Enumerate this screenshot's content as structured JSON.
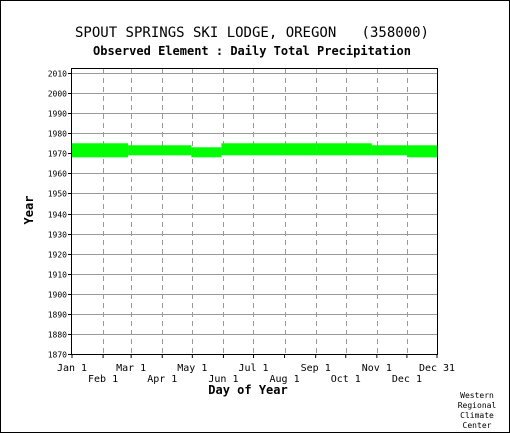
{
  "chart_data": {
    "type": "heatmap",
    "title": "SPOUT SPRINGS SKI LODGE, OREGON   (358000)",
    "subtitle": "Observed Element : Daily Total Precipitation",
    "xlabel": "Day of Year",
    "ylabel": "Year",
    "x_ticks_upper": [
      "Jan 1",
      "Mar 1",
      "May 1",
      "Jul 1",
      "Sep 1",
      "Nov 1",
      "Dec 31"
    ],
    "x_ticks_lower": [
      "Feb 1",
      "Apr 1",
      "Jun 1",
      "Aug 1",
      "Oct 1",
      "Dec 1"
    ],
    "y_ticks": [
      2010,
      2000,
      1990,
      1980,
      1970,
      1960,
      1950,
      1940,
      1930,
      1920,
      1910,
      1900,
      1890,
      1880,
      1870
    ],
    "ylim": [
      1870,
      2012
    ],
    "xlim_day_of_year": [
      1,
      365
    ],
    "grid": true,
    "data_color": "#00ff00",
    "record_periods": [
      {
        "start_day": 1,
        "end_day": 57,
        "from_year": 1968,
        "to_year": 1975
      },
      {
        "start_day": 57,
        "end_day": 120,
        "from_year": 1969,
        "to_year": 1974
      },
      {
        "start_day": 120,
        "end_day": 150,
        "from_year": 1968,
        "to_year": 1973
      },
      {
        "start_day": 150,
        "end_day": 178,
        "from_year": 1969,
        "to_year": 1975
      },
      {
        "start_day": 178,
        "end_day": 212,
        "from_year": 1969,
        "to_year": 1975
      },
      {
        "start_day": 212,
        "end_day": 245,
        "from_year": 1969,
        "to_year": 1975
      },
      {
        "start_day": 245,
        "end_day": 300,
        "from_year": 1969,
        "to_year": 1975
      },
      {
        "start_day": 300,
        "end_day": 335,
        "from_year": 1969,
        "to_year": 1974
      },
      {
        "start_day": 335,
        "end_day": 365,
        "from_year": 1968,
        "to_year": 1974
      }
    ]
  },
  "credit": [
    "Western",
    "Regional",
    "Climate",
    "Center"
  ]
}
